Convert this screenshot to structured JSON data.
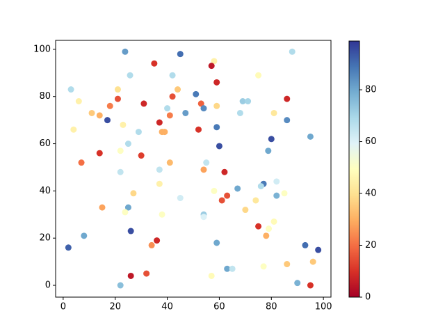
{
  "chart_data": {
    "type": "scatter",
    "colormap": "RdYlBu",
    "x": [
      23.8,
      45,
      35,
      25.7,
      58,
      57,
      75,
      88,
      59,
      3,
      21,
      42,
      44,
      51,
      42,
      6,
      21,
      31,
      53,
      54,
      59,
      69,
      71,
      86,
      40,
      11,
      14,
      18,
      41,
      47,
      68,
      81,
      17,
      23,
      37,
      86,
      4,
      29,
      38,
      39,
      52,
      59,
      80,
      95,
      25,
      60,
      22,
      78.8,
      14,
      30,
      7,
      41,
      55,
      22,
      37,
      54,
      62,
      82,
      77,
      76,
      37,
      67,
      27,
      58,
      85,
      45,
      82,
      63,
      61,
      74,
      15,
      25,
      70,
      23.8,
      38,
      54,
      54,
      81,
      75,
      79,
      26,
      8,
      78,
      36,
      59,
      34,
      93,
      98,
      2,
      96,
      86,
      77,
      63,
      65,
      57,
      26,
      32,
      90,
      22,
      95
    ],
    "y": [
      99,
      98,
      94,
      89,
      95,
      93,
      89,
      99,
      86,
      83,
      83,
      89,
      83,
      81,
      80,
      78,
      79,
      77,
      77,
      75,
      76,
      78,
      78,
      79,
      75,
      73,
      72,
      76,
      72,
      73,
      73,
      73,
      70,
      68,
      69,
      70,
      66,
      65,
      65,
      65,
      66,
      67,
      62,
      63,
      60,
      59,
      57,
      57,
      56,
      55,
      52,
      52,
      52,
      48,
      49,
      49,
      48,
      44,
      43,
      42,
      43,
      41,
      39,
      40,
      39,
      37,
      38,
      38,
      36,
      36,
      33,
      33,
      32,
      31,
      30,
      30,
      29,
      27,
      25,
      24,
      23,
      21,
      21,
      19,
      18,
      17,
      17,
      15,
      16,
      10,
      9,
      8,
      7,
      7,
      4,
      4,
      5,
      1,
      0,
      0
    ],
    "c": [
      82,
      90,
      10,
      68,
      45,
      5,
      48,
      68,
      8,
      68,
      40,
      68,
      35,
      88,
      15,
      45,
      15,
      8,
      18,
      85,
      38,
      72,
      70,
      8,
      68,
      35,
      30,
      22,
      22,
      82,
      68,
      42,
      95,
      45,
      8,
      85,
      45,
      68,
      30,
      30,
      10,
      88,
      95,
      80,
      68,
      95,
      50,
      80,
      10,
      12,
      20,
      32,
      65,
      65,
      65,
      28,
      8,
      62,
      88,
      68,
      45,
      80,
      38,
      50,
      50,
      62,
      78,
      15,
      15,
      42,
      28,
      80,
      38,
      50,
      50,
      72,
      60,
      48,
      10,
      50,
      95,
      80,
      30,
      8,
      80,
      25,
      90,
      95,
      92,
      35,
      35,
      50,
      80,
      65,
      48,
      5,
      15,
      78,
      75,
      10
    ],
    "xlim": [
      -2.9,
      102.9
    ],
    "ylim": [
      -5,
      103.8
    ],
    "clim": [
      0,
      98.8
    ],
    "xticks": [
      0,
      20,
      40,
      60,
      80,
      100
    ],
    "yticks": [
      0,
      20,
      40,
      60,
      80,
      100
    ],
    "cticks": [
      0,
      20,
      40,
      60,
      80
    ]
  }
}
